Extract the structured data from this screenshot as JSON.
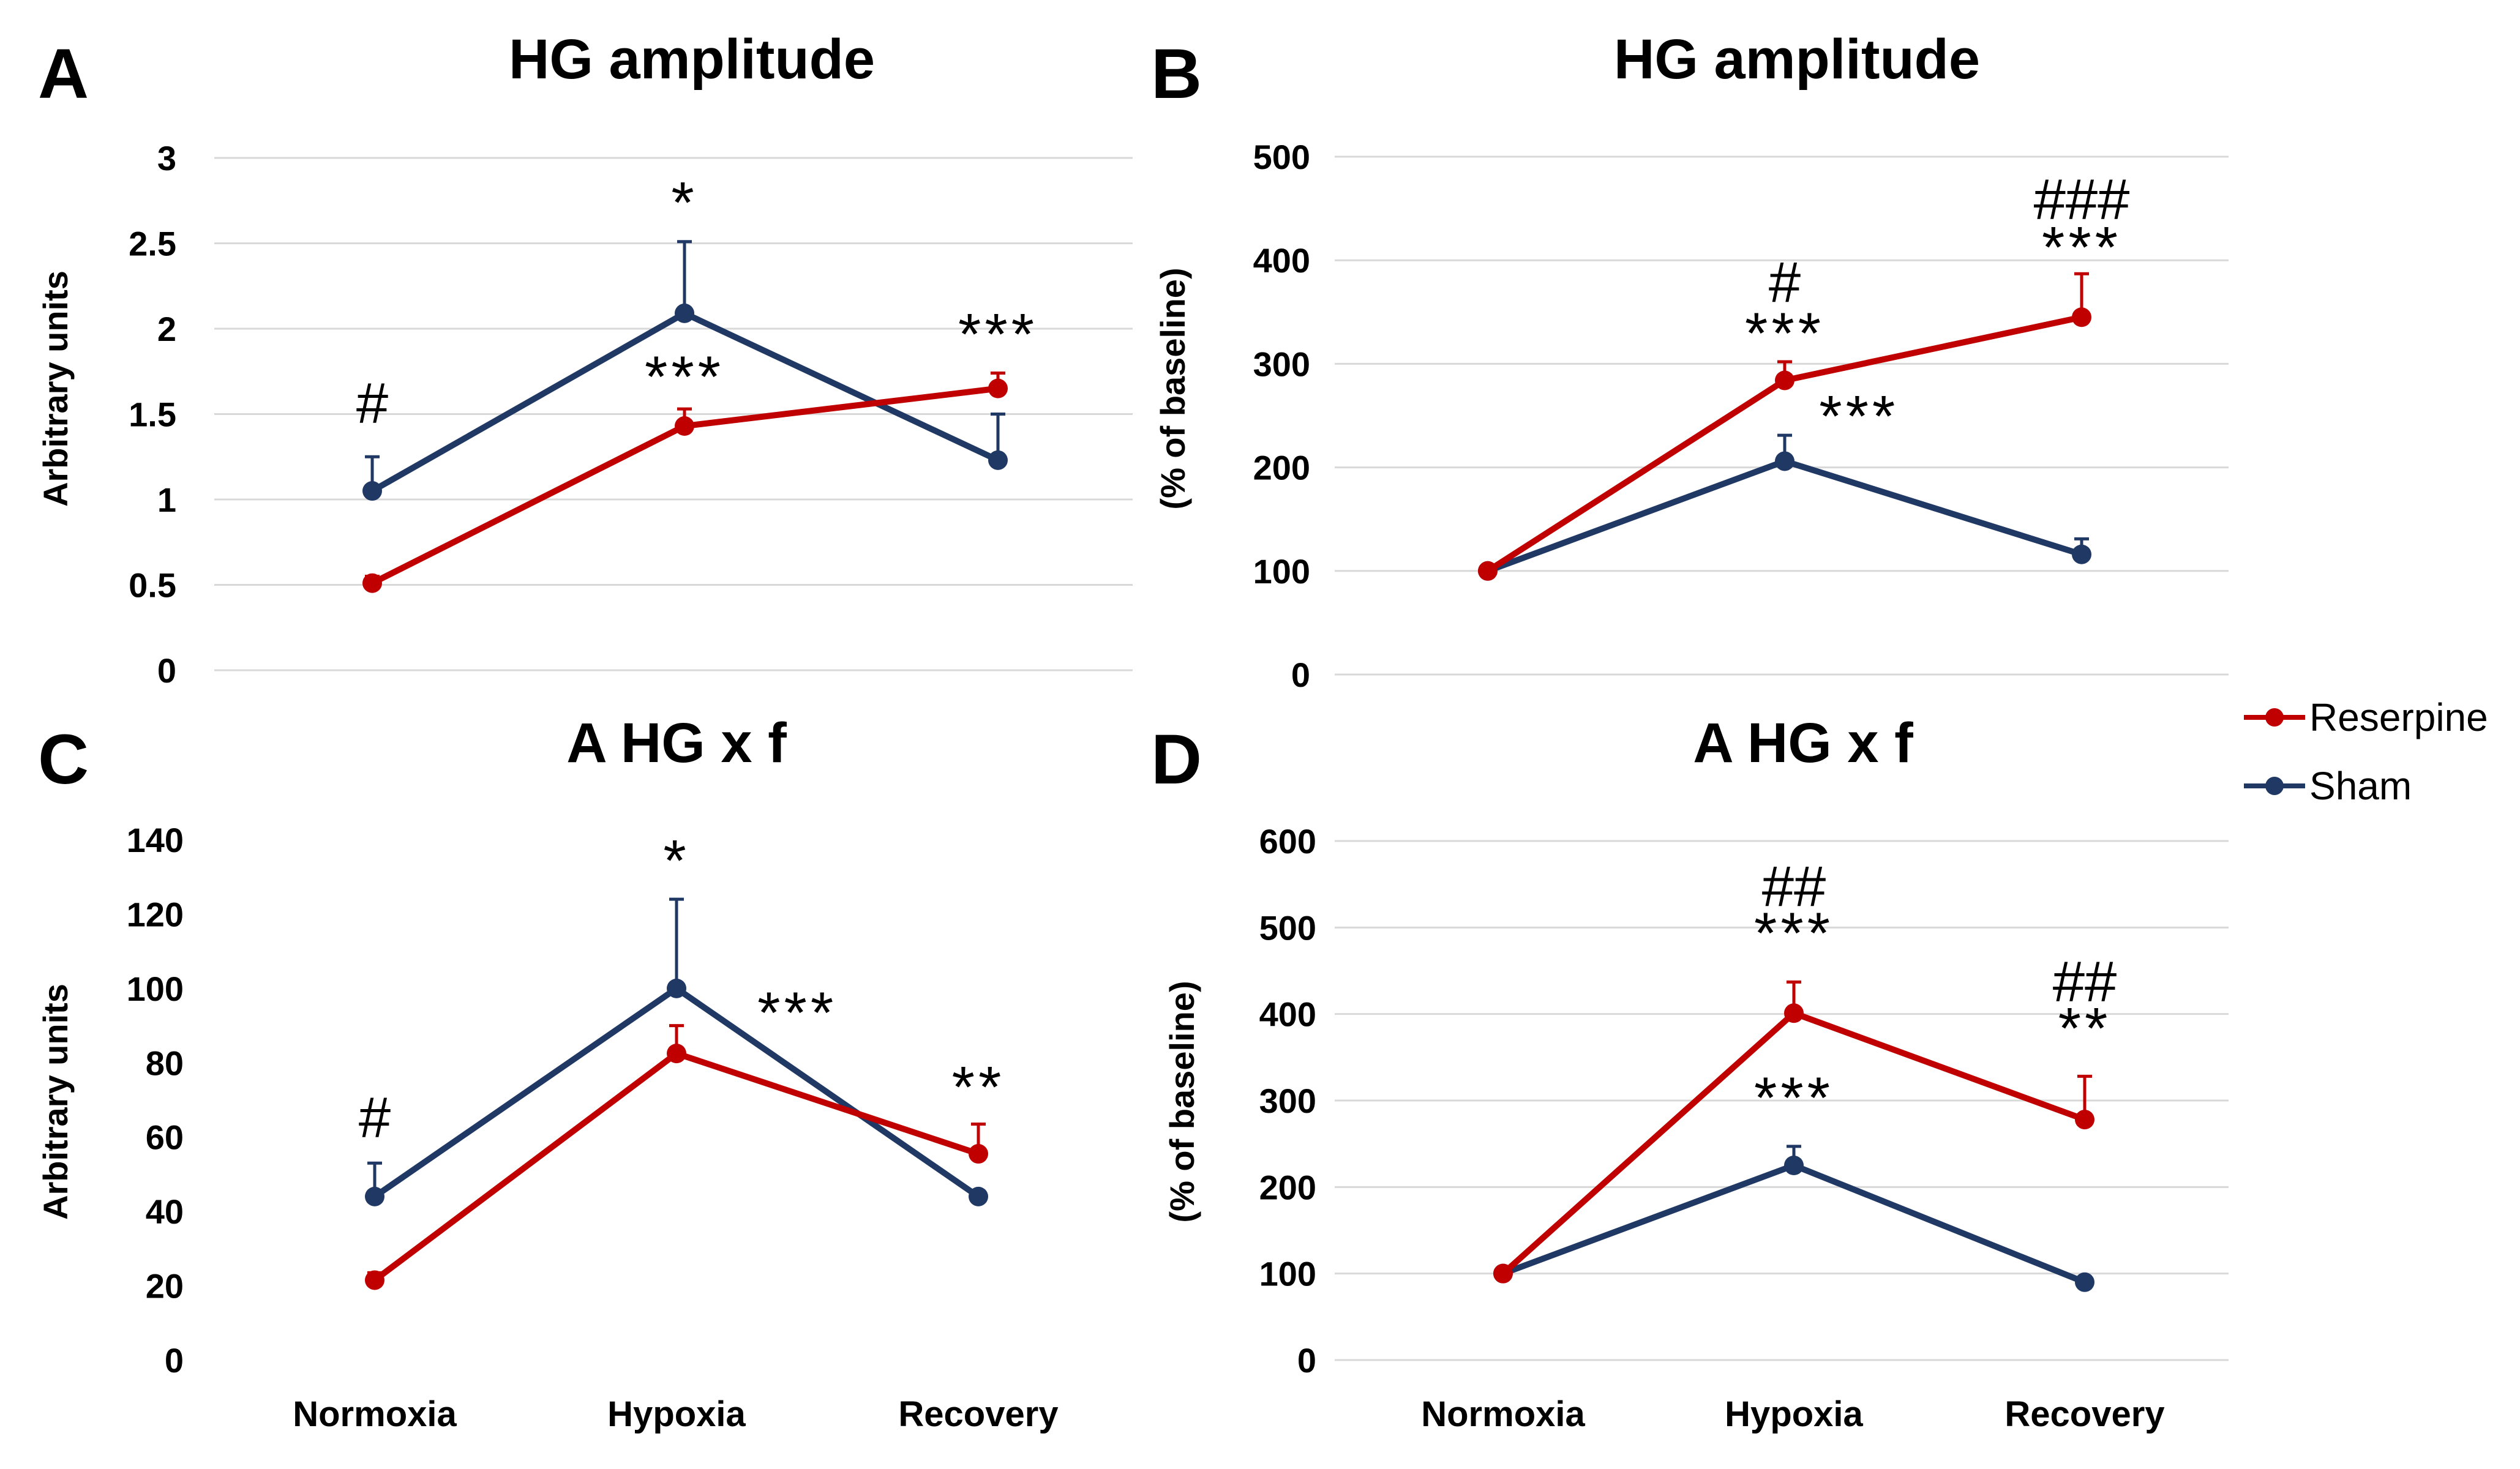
{
  "colors": {
    "reserpine": "#c00000",
    "sham": "#203864"
  },
  "legend": {
    "items": [
      {
        "name": "Reserpine",
        "color": "#c00000"
      },
      {
        "name": "Sham",
        "color": "#203864"
      }
    ]
  },
  "chart_data": [
    {
      "type": "line",
      "panel": "A",
      "title": "HG amplitude",
      "ylabel": "Arbitrary units",
      "categories": [
        "Normoxia",
        "Hypoxia",
        "Recovery"
      ],
      "ylim": [
        0,
        3
      ],
      "yticks": [
        "0",
        "0.5",
        "1",
        "1.5",
        "2",
        "2.5",
        "3"
      ],
      "grid": true,
      "series": [
        {
          "name": "Reserpine",
          "color": "#c00000",
          "values": [
            0.51,
            1.43,
            1.65
          ],
          "errors": [
            0.04,
            0.1,
            0.09
          ]
        },
        {
          "name": "Sham",
          "color": "#203864",
          "values": [
            1.05,
            2.09,
            1.23
          ],
          "errors": [
            0.2,
            0.42,
            0.27
          ]
        }
      ],
      "annotations": [
        {
          "text": "#",
          "cat": 0,
          "y": 1.45,
          "kind": "hash"
        },
        {
          "text": "*",
          "cat": 1,
          "y": 2.62,
          "kind": "star"
        },
        {
          "text": "***",
          "cat": 1,
          "y": 1.6,
          "kind": "star"
        },
        {
          "text": "***",
          "cat": 2,
          "y": 1.85,
          "kind": "star"
        }
      ]
    },
    {
      "type": "line",
      "panel": "B",
      "title": "HG amplitude",
      "ylabel": "(% of baseline)",
      "categories": [
        "Normoxia",
        "Hypoxia",
        "Recovery"
      ],
      "ylim": [
        0,
        500
      ],
      "yticks": [
        "0",
        "100",
        "200",
        "300",
        "400",
        "500"
      ],
      "grid": true,
      "series": [
        {
          "name": "Reserpine",
          "color": "#c00000",
          "values": [
            100,
            284,
            345
          ],
          "errors": [
            0,
            18,
            42
          ]
        },
        {
          "name": "Sham",
          "color": "#203864",
          "values": [
            100,
            206,
            116
          ],
          "errors": [
            0,
            25,
            15
          ]
        }
      ],
      "annotations": [
        {
          "text": "#",
          "cat": 1,
          "y": 360,
          "kind": "hash"
        },
        {
          "text": "***",
          "cat": 1,
          "y": 310,
          "kind": "star"
        },
        {
          "text": "***",
          "cat": 1.25,
          "y": 230,
          "kind": "star"
        },
        {
          "text": "###",
          "cat": 2,
          "y": 440,
          "kind": "hash"
        },
        {
          "text": "***",
          "cat": 2,
          "y": 393,
          "kind": "star"
        }
      ]
    },
    {
      "type": "line",
      "panel": "C",
      "title": "A HG x f",
      "ylabel": "Arbitrary units",
      "categories": [
        "Normoxia",
        "Hypoxia",
        "Recovery"
      ],
      "ylim": [
        0,
        140
      ],
      "yticks": [
        "0",
        "20",
        "40",
        "60",
        "80",
        "100",
        "120",
        "140"
      ],
      "grid": false,
      "series": [
        {
          "name": "Reserpine",
          "color": "#c00000",
          "values": [
            21.5,
            82.5,
            55.5
          ],
          "errors": [
            2,
            7.5,
            8
          ]
        },
        {
          "name": "Sham",
          "color": "#203864",
          "values": [
            44,
            100,
            44
          ],
          "errors": [
            9,
            24,
            0
          ]
        }
      ],
      "annotations": [
        {
          "text": "#",
          "cat": 0,
          "y": 60,
          "kind": "hash"
        },
        {
          "text": "*",
          "cat": 1,
          "y": 129,
          "kind": "star"
        },
        {
          "text": "***",
          "cat": 1.4,
          "y": 88,
          "kind": "star"
        },
        {
          "text": "**",
          "cat": 2,
          "y": 68,
          "kind": "star"
        }
      ]
    },
    {
      "type": "line",
      "panel": "D",
      "title": "A HG x f",
      "ylabel": "(% of baseline)",
      "categories": [
        "Normoxia",
        "Hypoxia",
        "Recovery"
      ],
      "ylim": [
        0,
        600
      ],
      "yticks": [
        "0",
        "100",
        "200",
        "300",
        "400",
        "500",
        "600"
      ],
      "grid": true,
      "series": [
        {
          "name": "Reserpine",
          "color": "#c00000",
          "values": [
            100,
            401,
            278
          ],
          "errors": [
            0,
            36,
            50
          ]
        },
        {
          "name": "Sham",
          "color": "#203864",
          "values": [
            100,
            225,
            90
          ],
          "errors": [
            0,
            22,
            0
          ]
        }
      ],
      "annotations": [
        {
          "text": "##",
          "cat": 1,
          "y": 525,
          "kind": "hash"
        },
        {
          "text": "***",
          "cat": 1,
          "y": 470,
          "kind": "star"
        },
        {
          "text": "***",
          "cat": 1,
          "y": 280,
          "kind": "star"
        },
        {
          "text": "##",
          "cat": 2,
          "y": 415,
          "kind": "hash"
        },
        {
          "text": "**",
          "cat": 2,
          "y": 360,
          "kind": "star"
        }
      ]
    }
  ]
}
